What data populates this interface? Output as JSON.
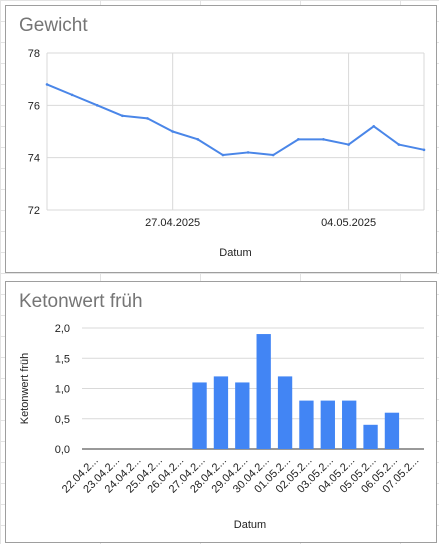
{
  "chart_data": [
    {
      "type": "line",
      "title": "Gewicht",
      "xlabel": "Datum",
      "ylabel": "",
      "ylim": [
        72,
        78
      ],
      "yticks": [
        "72",
        "74",
        "76",
        "78"
      ],
      "xticks": [
        "27.04.2025",
        "04.05.2025"
      ],
      "x": [
        "22.04.2025",
        "23.04.2025",
        "24.04.2025",
        "25.04.2025",
        "26.04.2025",
        "27.04.2025",
        "28.04.2025",
        "29.04.2025",
        "30.04.2025",
        "01.05.2025",
        "02.05.2025",
        "03.05.2025",
        "04.05.2025",
        "05.05.2025",
        "06.05.2025",
        "07.05.2025"
      ],
      "series": [
        {
          "values": [
            76.8,
            76.4,
            76.0,
            75.6,
            75.5,
            75.0,
            74.7,
            74.1,
            74.2,
            74.1,
            74.7,
            74.7,
            74.5,
            75.2,
            74.5,
            74.3
          ],
          "color": "#4a86e8"
        }
      ],
      "grid": true,
      "legend": "none"
    },
    {
      "type": "bar",
      "title": "Ketonwert früh",
      "xlabel": "Datum",
      "ylabel": "Ketonwert früh",
      "ylim": [
        0,
        2
      ],
      "yticks": [
        "0,0",
        "0,5",
        "1,0",
        "1,5",
        "2,0"
      ],
      "categories": [
        "22.04.2...",
        "23.04.2...",
        "24.04.2...",
        "25.04.2...",
        "26.04.2...",
        "27.04.2...",
        "28.04.2...",
        "29.04.2...",
        "30.04.2...",
        "01.05.2...",
        "02.05.2...",
        "03.05.2...",
        "04.05.2...",
        "05.05.2...",
        "06.05.2...",
        "07.05.2..."
      ],
      "series": [
        {
          "values": [
            0,
            0,
            0,
            0,
            0,
            1.1,
            1.2,
            1.1,
            1.9,
            1.2,
            0.8,
            0.8,
            0.8,
            0.4,
            0.6,
            0
          ],
          "color": "#4285f4"
        }
      ],
      "grid": true,
      "legend": "none"
    }
  ]
}
